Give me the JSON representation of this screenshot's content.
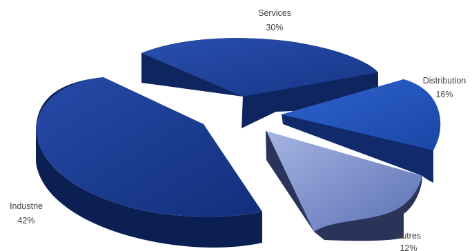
{
  "chart_data": {
    "type": "pie",
    "style": "3d-exploded",
    "slices": [
      {
        "name": "Services",
        "value": 30,
        "label": "30%",
        "color": "#1f3f9c"
      },
      {
        "name": "Distribution",
        "value": 16,
        "label": "16%",
        "color": "#2251b5"
      },
      {
        "name": "Autres",
        "value": 12,
        "label": "12%",
        "color": "#7186c4"
      },
      {
        "name": "Industrie",
        "value": 42,
        "label": "42%",
        "color": "#173a8e"
      }
    ]
  }
}
